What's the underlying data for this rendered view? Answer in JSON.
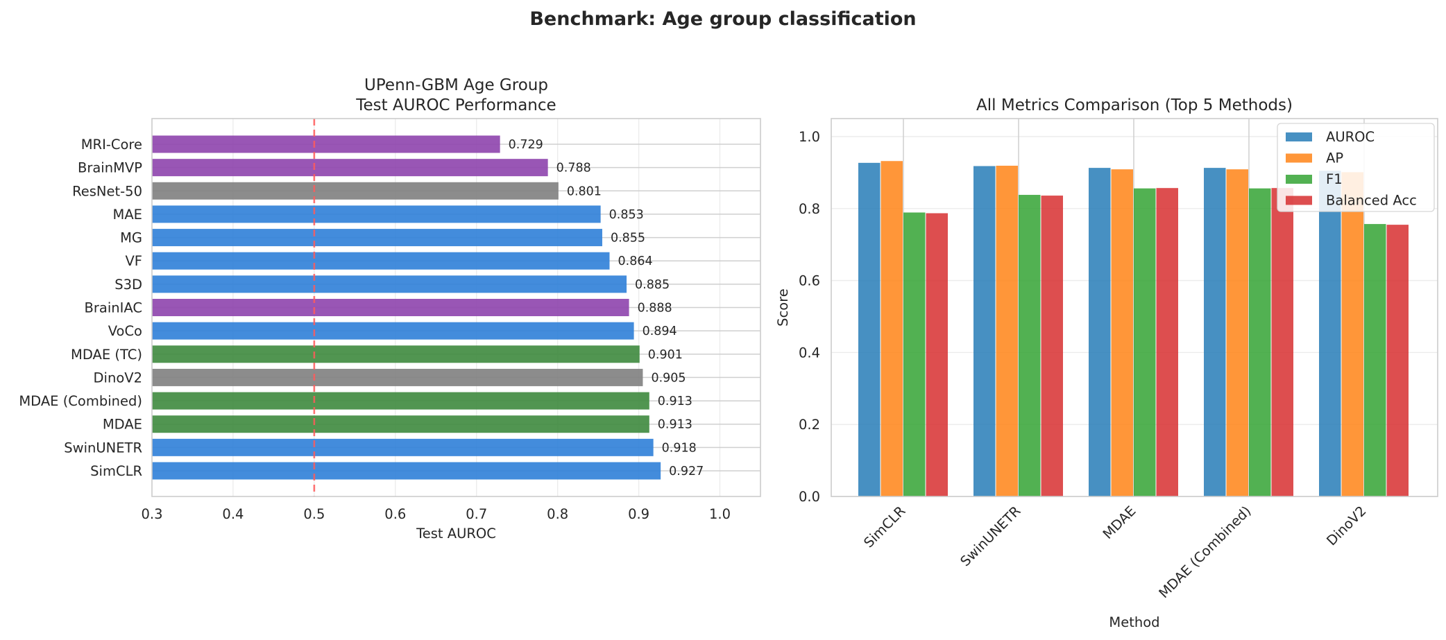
{
  "figure": {
    "suptitle": "Benchmark: Age group classification"
  },
  "chart_data": [
    {
      "type": "bar",
      "orientation": "horizontal",
      "title": "UPenn-GBM Age Group\nTest AUROC Performance",
      "xlabel": "Test AUROC",
      "ylabel": "",
      "xlim": [
        0.3,
        1.05
      ],
      "xticks": [
        "0.3",
        "0.4",
        "0.5",
        "0.6",
        "0.7",
        "0.8",
        "0.9",
        "1.0"
      ],
      "reference_line": {
        "x": 0.5,
        "style": "dashed",
        "color": "#ff5a5a"
      },
      "grid": true,
      "categories": [
        "MRI-Core",
        "BrainMVP",
        "ResNet-50",
        "MAE",
        "MG",
        "VF",
        "S3D",
        "BrainIAC",
        "VoCo",
        "MDAE (TC)",
        "DinoV2",
        "MDAE (Combined)",
        "MDAE",
        "SwinUNETR",
        "SimCLR"
      ],
      "values": [
        0.729,
        0.788,
        0.801,
        0.853,
        0.855,
        0.864,
        0.885,
        0.888,
        0.894,
        0.901,
        0.905,
        0.913,
        0.913,
        0.918,
        0.927
      ],
      "value_labels": [
        "0.729",
        "0.788",
        "0.801",
        "0.853",
        "0.855",
        "0.864",
        "0.885",
        "0.888",
        "0.894",
        "0.901",
        "0.905",
        "0.913",
        "0.913",
        "0.918",
        "0.927"
      ],
      "colors": [
        "#8e44ad",
        "#8e44ad",
        "#7f7f7f",
        "#2f80d8",
        "#2f80d8",
        "#2f80d8",
        "#2f80d8",
        "#8e44ad",
        "#2f80d8",
        "#3e8a3e",
        "#7f7f7f",
        "#3e8a3e",
        "#3e8a3e",
        "#2f80d8",
        "#2f80d8"
      ]
    },
    {
      "type": "bar",
      "orientation": "vertical",
      "title": "All Metrics Comparison (Top 5 Methods)",
      "xlabel": "Method",
      "ylabel": "Score",
      "ylim": [
        0.0,
        1.05
      ],
      "yticks": [
        "0.0",
        "0.2",
        "0.4",
        "0.6",
        "0.8",
        "1.0"
      ],
      "grid": true,
      "legend_position": "top-right",
      "categories": [
        "SimCLR",
        "SwinUNETR",
        "MDAE",
        "MDAE (Combined)",
        "DinoV2"
      ],
      "series": [
        {
          "name": "AUROC",
          "color": "#1f77b4",
          "values": [
            0.927,
            0.918,
            0.913,
            0.913,
            0.905
          ]
        },
        {
          "name": "AP",
          "color": "#ff7f0e",
          "values": [
            0.932,
            0.919,
            0.909,
            0.909,
            0.901
          ]
        },
        {
          "name": "F1",
          "color": "#2ca02c",
          "values": [
            0.789,
            0.838,
            0.856,
            0.856,
            0.757
          ]
        },
        {
          "name": "Balanced Acc",
          "color": "#d62728",
          "values": [
            0.787,
            0.836,
            0.857,
            0.857,
            0.755
          ]
        }
      ]
    }
  ]
}
